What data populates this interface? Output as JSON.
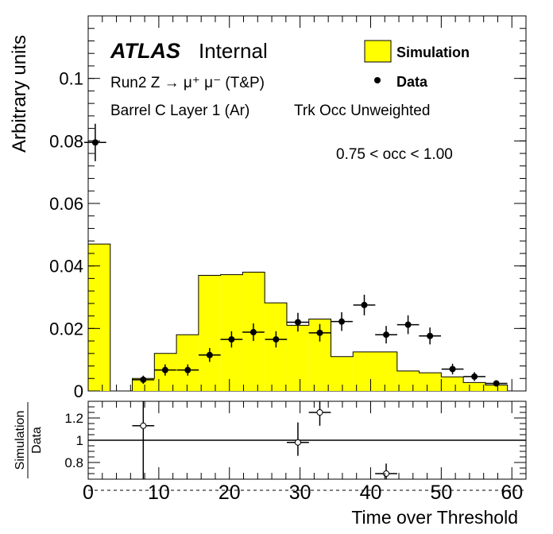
{
  "chart_data": [
    {
      "type": "bar",
      "panel": "main",
      "ylabel": "Arbitrary units",
      "ylim": [
        0,
        0.12
      ],
      "xlim": [
        0,
        62
      ],
      "yticks": [
        0,
        0.02,
        0.04,
        0.06,
        0.08,
        0.1
      ],
      "ytick_labels": [
        "0",
        "0.02",
        "0.04",
        "0.06",
        "0.08",
        "0.1"
      ],
      "annotations": {
        "brand": "ATLAS",
        "status": "Internal",
        "process": "Run2 Z → μ⁺ μ⁻ (T&P)",
        "region": "Barrel C Layer 1 (Ar)",
        "weighting": "Trk Occ Unweighted",
        "occupancy": "0.75 < occ < 1.00"
      },
      "legend": {
        "position": "top-right",
        "entries": [
          "Simulation",
          "Data"
        ]
      },
      "series": [
        {
          "name": "Simulation",
          "style": "filled-histogram",
          "color": "#ffff00",
          "bin_edges": [
            0,
            3.125,
            6.25,
            9.375,
            12.5,
            15.625,
            18.75,
            21.875,
            25,
            28.125,
            31.25,
            34.375,
            37.5,
            40.625,
            43.75,
            46.875,
            50,
            53.125,
            56.25,
            59.375
          ],
          "values": [
            0.047,
            0.0,
            0.004,
            0.012,
            0.018,
            0.037,
            0.0372,
            0.038,
            0.0282,
            0.021,
            0.023,
            0.011,
            0.0125,
            0.0125,
            0.0064,
            0.0058,
            0.0045,
            0.0027,
            0.0019
          ]
        },
        {
          "name": "Data",
          "style": "points-with-errors",
          "x": [
            1.0,
            7.8,
            10.9,
            14.1,
            17.2,
            20.3,
            23.4,
            26.6,
            29.7,
            32.8,
            35.9,
            39.1,
            42.2,
            45.3,
            48.4,
            51.6,
            54.7,
            57.8
          ],
          "y": [
            0.0795,
            0.0036,
            0.0067,
            0.0067,
            0.0115,
            0.0165,
            0.0188,
            0.0165,
            0.022,
            0.0186,
            0.0222,
            0.0275,
            0.018,
            0.0212,
            0.0176,
            0.007,
            0.0046,
            0.0024
          ],
          "yerr": [
            0.006,
            0.0013,
            0.0018,
            0.0018,
            0.0022,
            0.0026,
            0.0028,
            0.0026,
            0.003,
            0.0028,
            0.003,
            0.0033,
            0.0028,
            0.003,
            0.0027,
            0.0017,
            0.0014,
            0.001
          ],
          "xerr": 1.56
        }
      ]
    },
    {
      "type": "scatter",
      "panel": "ratio",
      "xlabel": "Time over Threshold",
      "ylabel_numerator": "Simulation",
      "ylabel_denominator": "Data",
      "xlim": [
        0,
        62
      ],
      "ylim": [
        0.65,
        1.35
      ],
      "xticks": [
        0,
        10,
        20,
        30,
        40,
        50,
        60
      ],
      "xtick_labels": [
        "0",
        "10",
        "20",
        "30",
        "40",
        "50",
        "60"
      ],
      "yticks": [
        0.8,
        1,
        1.2
      ],
      "ytick_labels": [
        "0.8",
        "1",
        "1.2"
      ],
      "reference_line": 1,
      "series": [
        {
          "name": "Simulation/Data",
          "style": "open-points-with-errors",
          "x": [
            7.8,
            29.7,
            32.8,
            42.2
          ],
          "y": [
            1.13,
            0.98,
            1.25,
            0.7
          ],
          "yerr_low": [
            0.5,
            0.12,
            0.12,
            0.08
          ],
          "yerr_high": [
            0.5,
            0.18,
            0.15,
            0.09
          ],
          "xerr": 1.56
        }
      ]
    }
  ]
}
